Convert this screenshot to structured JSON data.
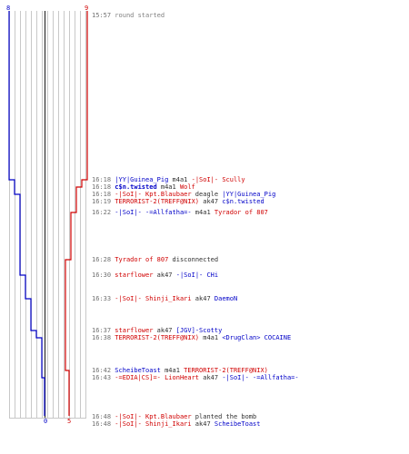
{
  "colors": {
    "ct": "#0000c8",
    "t": "#d00000",
    "grid": "#c8c8c8",
    "center": "#404040",
    "time": "#707070"
  },
  "score": {
    "ct_top": "8",
    "t_top": "9",
    "ct_bottom": "0",
    "t_bottom": "5"
  },
  "events": [
    {
      "time": "15:57",
      "parts": [
        {
          "t": "round started",
          "c": "gray"
        }
      ]
    },
    {
      "time": "16:18",
      "parts": [
        {
          "t": "|YY|Guinea_Pig",
          "c": "blue"
        },
        {
          "t": " m4a1 ",
          "c": "txt"
        },
        {
          "t": "-|SoI|- Scully",
          "c": "red"
        }
      ]
    },
    {
      "time": "16:18",
      "parts": [
        {
          "t": "c$n.twisted",
          "c": "blue",
          "b": true
        },
        {
          "t": " m4a1 ",
          "c": "txt"
        },
        {
          "t": "Wolf",
          "c": "red"
        }
      ]
    },
    {
      "time": "16:18",
      "parts": [
        {
          "t": "-|SoI|- Kpt.Blaubaer",
          "c": "red"
        },
        {
          "t": " deagle ",
          "c": "txt"
        },
        {
          "t": "|YY|Guinea_Pig",
          "c": "blue"
        }
      ]
    },
    {
      "time": "16:19",
      "parts": [
        {
          "t": "TERRORIST-2(TREFF@NIX)",
          "c": "red"
        },
        {
          "t": " ak47 ",
          "c": "txt"
        },
        {
          "t": "c$n.twisted",
          "c": "blue"
        }
      ]
    },
    {
      "time": "16:22",
      "parts": [
        {
          "t": "-|SoI|- -=Allfatha=-",
          "c": "blue"
        },
        {
          "t": " m4a1 ",
          "c": "txt"
        },
        {
          "t": "Tyrador of 807",
          "c": "red"
        }
      ]
    },
    {
      "time": "16:28",
      "parts": [
        {
          "t": "Tyrador of 807",
          "c": "red"
        },
        {
          "t": " disconnected",
          "c": "txt"
        }
      ]
    },
    {
      "time": "16:30",
      "parts": [
        {
          "t": "starflower",
          "c": "red"
        },
        {
          "t": " ak47 ",
          "c": "txt"
        },
        {
          "t": "-|SoI|- CHi",
          "c": "blue"
        }
      ]
    },
    {
      "time": "16:33",
      "parts": [
        {
          "t": "-|SoI|- Shinji_Ikari",
          "c": "red"
        },
        {
          "t": " ak47 ",
          "c": "txt"
        },
        {
          "t": "DaemoN",
          "c": "blue"
        }
      ]
    },
    {
      "time": "16:37",
      "parts": [
        {
          "t": "starflower",
          "c": "red"
        },
        {
          "t": " ak47 ",
          "c": "txt"
        },
        {
          "t": "[JGV]-Scotty",
          "c": "blue"
        }
      ]
    },
    {
      "time": "16:38",
      "parts": [
        {
          "t": "TERRORIST-2(TREFF@NIX)",
          "c": "red"
        },
        {
          "t": " m4a1 ",
          "c": "txt"
        },
        {
          "t": "<DrugClan> COCAINE",
          "c": "blue"
        }
      ]
    },
    {
      "time": "16:42",
      "parts": [
        {
          "t": "ScheibeToast",
          "c": "blue"
        },
        {
          "t": " m4a1 ",
          "c": "txt"
        },
        {
          "t": "TERRORIST-2(TREFF@NIX)",
          "c": "red"
        }
      ]
    },
    {
      "time": "16:43",
      "parts": [
        {
          "t": "-=EDIA|CS]=- LionHeart",
          "c": "red"
        },
        {
          "t": " ak47 ",
          "c": "txt"
        },
        {
          "t": "-|SoI|- -=Allfatha=-",
          "c": "blue"
        }
      ]
    },
    {
      "time": "16:48",
      "parts": [
        {
          "t": "-|SoI|- Kpt.Blaubaer",
          "c": "red"
        },
        {
          "t": " planted the bomb",
          "c": "txt"
        }
      ]
    },
    {
      "time": "16:48",
      "parts": [
        {
          "t": "-|SoI|- Shinji_Ikari",
          "c": "red"
        },
        {
          "t": " ak47 ",
          "c": "txt"
        },
        {
          "t": "ScheibeToast",
          "c": "blue"
        }
      ]
    }
  ]
}
